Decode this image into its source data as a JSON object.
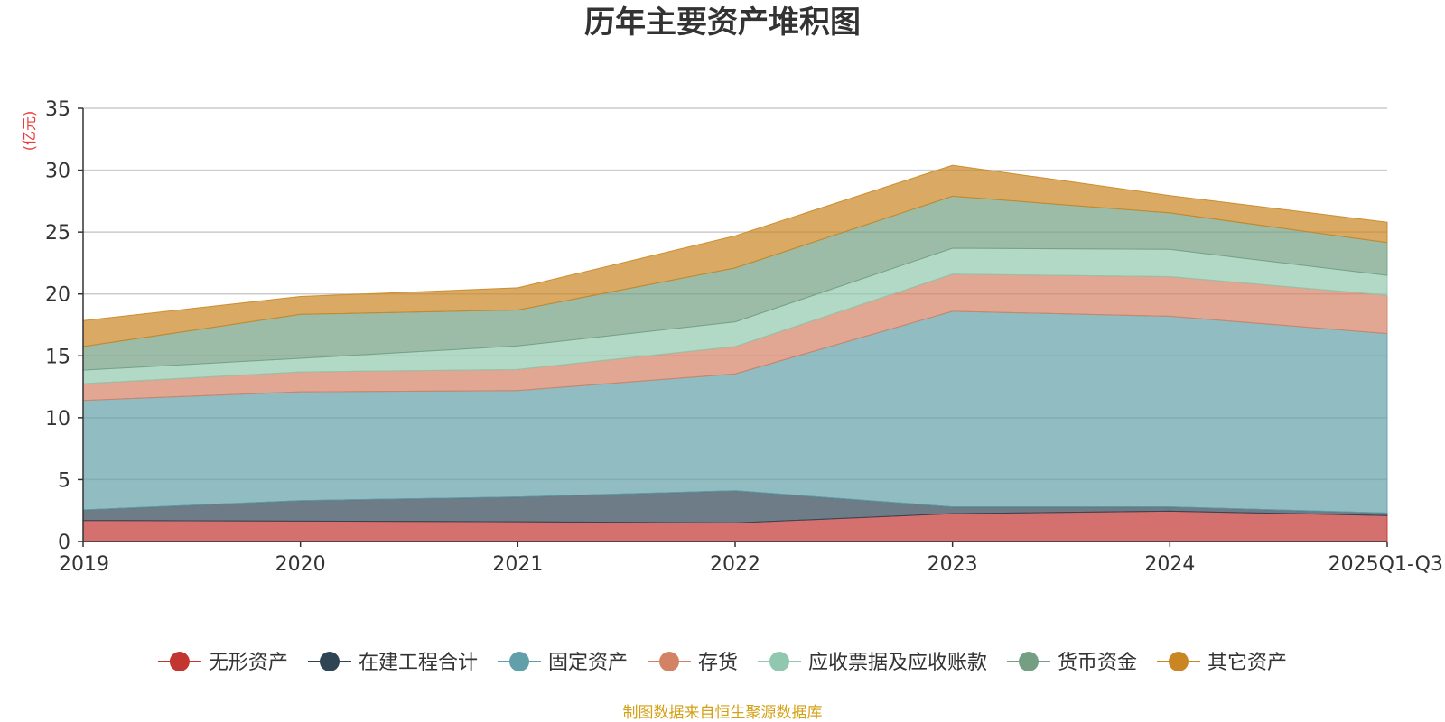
{
  "chart_data": {
    "type": "area",
    "stacked": true,
    "title": "历年主要资产堆积图",
    "unit_label": "(亿元)",
    "ylim": [
      0,
      35
    ],
    "y_ticks": [
      "0",
      "5",
      "10",
      "15",
      "20",
      "25",
      "30",
      "35"
    ],
    "categories": [
      "2019",
      "2020",
      "2021",
      "2022",
      "2023",
      "2024",
      "2025Q1-Q3"
    ],
    "series": [
      {
        "name": "无形资产",
        "color": "#c23531",
        "values": [
          1.7,
          1.65,
          1.6,
          1.5,
          2.25,
          2.45,
          2.1
        ]
      },
      {
        "name": "在建工程合计",
        "color": "#2f4554",
        "values": [
          0.85,
          1.65,
          2.0,
          2.6,
          0.55,
          0.35,
          0.2
        ]
      },
      {
        "name": "固定资产",
        "color": "#61a0a8",
        "values": [
          8.85,
          8.8,
          8.6,
          9.45,
          15.8,
          15.4,
          14.5
        ]
      },
      {
        "name": "存货",
        "color": "#d48265",
        "values": [
          1.35,
          1.6,
          1.7,
          2.2,
          3.0,
          3.2,
          3.1
        ]
      },
      {
        "name": "应收票据及应收账款",
        "color": "#91c7ae",
        "values": [
          1.1,
          1.1,
          1.9,
          2.0,
          2.1,
          2.2,
          1.6
        ]
      },
      {
        "name": "货币资金",
        "color": "#749f83",
        "values": [
          1.9,
          3.55,
          2.9,
          4.35,
          4.2,
          2.95,
          2.65
        ]
      },
      {
        "name": "其它资产",
        "color": "#ca8622",
        "values": [
          2.1,
          1.45,
          1.8,
          2.6,
          2.5,
          1.4,
          1.65
        ]
      }
    ],
    "legend_position": "bottom",
    "grid": true
  },
  "footer": {
    "source": "制图数据来自恒生聚源数据库"
  },
  "colors": {
    "unit_label": "#e83a3a",
    "source": "#d4a017",
    "grid": "#cccccc",
    "axis": "#333333"
  }
}
